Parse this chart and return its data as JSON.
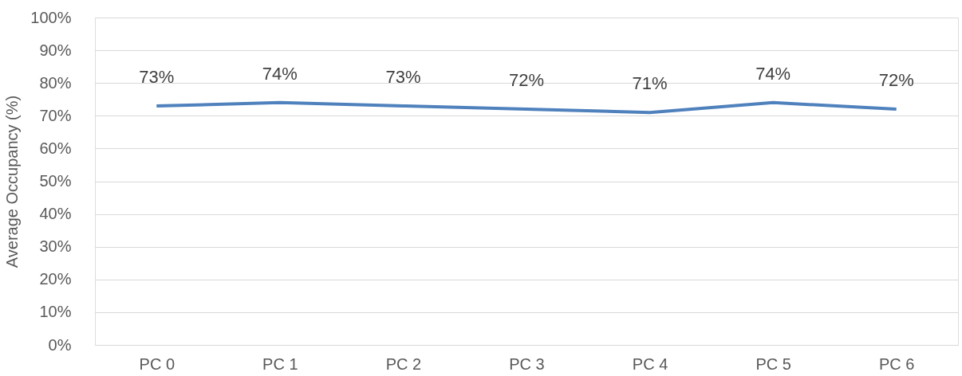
{
  "chart_data": {
    "type": "line",
    "ylabel": "Average Occupancy (%)",
    "categories": [
      "PC 0",
      "PC 1",
      "PC 2",
      "PC 3",
      "PC 4",
      "PC 5",
      "PC 6"
    ],
    "series": [
      {
        "color": "#4f81bd",
        "values": [
          73,
          74,
          73,
          72,
          71,
          74,
          72
        ],
        "value_labels": [
          "73%",
          "74%",
          "73%",
          "72%",
          "71%",
          "74%",
          "72%"
        ]
      }
    ],
    "ylim": [
      0,
      100
    ],
    "yticks": [
      {
        "value": 0,
        "label": "0%"
      },
      {
        "value": 10,
        "label": "10%"
      },
      {
        "value": 20,
        "label": "20%"
      },
      {
        "value": 30,
        "label": "30%"
      },
      {
        "value": 40,
        "label": "40%"
      },
      {
        "value": 50,
        "label": "50%"
      },
      {
        "value": 60,
        "label": "60%"
      },
      {
        "value": 70,
        "label": "70%"
      },
      {
        "value": 80,
        "label": "80%"
      },
      {
        "value": 90,
        "label": "90%"
      },
      {
        "value": 100,
        "label": "100%"
      }
    ],
    "grid": "y",
    "marker": "none",
    "line_style": "solid"
  }
}
